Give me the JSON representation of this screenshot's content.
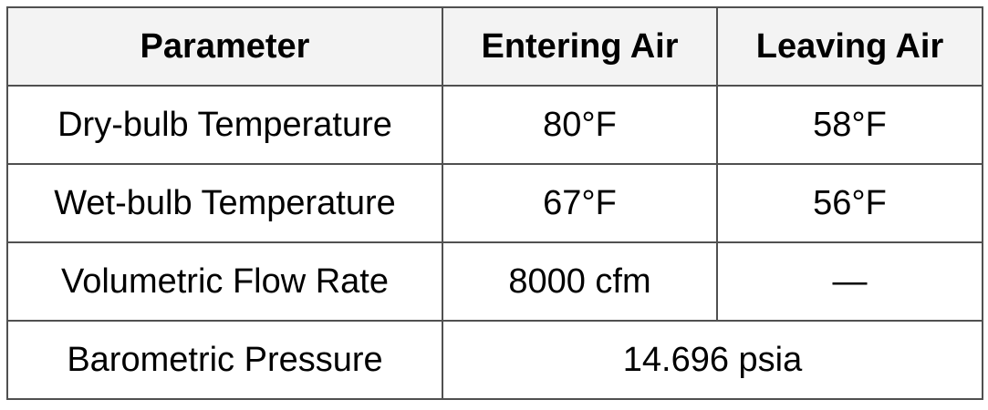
{
  "table": {
    "headers": [
      "Parameter",
      "Entering Air",
      "Leaving Air"
    ],
    "rows": [
      {
        "parameter": "Dry-bulb Temperature",
        "entering": "80°F",
        "leaving": "58°F"
      },
      {
        "parameter": "Wet-bulb Temperature",
        "entering": "67°F",
        "leaving": "56°F"
      },
      {
        "parameter": "Volumetric Flow Rate",
        "entering": "8000 cfm",
        "leaving": "—"
      },
      {
        "parameter": "Barometric Pressure",
        "combined": "14.696 psia"
      }
    ],
    "colors": {
      "header_background": "#f3f3f3",
      "border": "#505050",
      "text": "#000000"
    }
  }
}
